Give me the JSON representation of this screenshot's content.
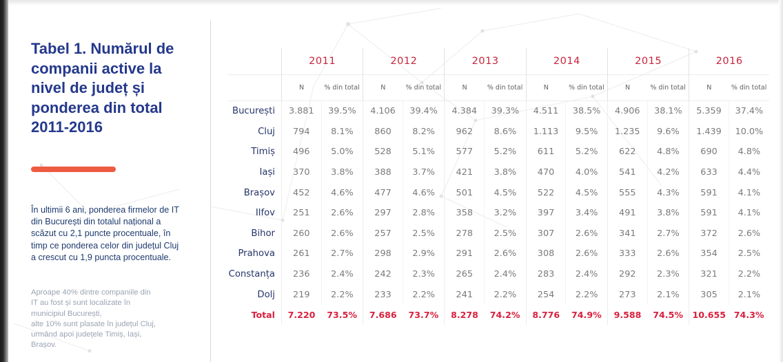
{
  "title": "Tabel 1. Numărul de companii active la nivel de județ și ponderea din total 2011-2016",
  "lead_text": "În ultimii 6 ani, ponderea firmelor de IT din București din totalul național a scăzut cu 2,1 puncte procentuale, în timp ce ponderea celor din județul Cluj a crescut cu 1,9 puncta procentuale.",
  "note_lines": [
    "Aproape 40% dintre companiile din",
    "IT au fost și sunt localizate în",
    "municipiul București,",
    "alte 10% sunt plasate în județul Cluj,",
    "urmând apoi județele Timiș, Iași,",
    "Brașov."
  ],
  "colors": {
    "title": "#24388c",
    "accent": "#ee5b41",
    "year": "#c7243a",
    "total": "#d9213f"
  },
  "table": {
    "years": [
      "2011",
      "2012",
      "2013",
      "2014",
      "2015",
      "2016"
    ],
    "sub_headers": [
      "N",
      "% din total"
    ],
    "rows": [
      {
        "region": "București",
        "values": [
          "3.881",
          "39.5%",
          "4.106",
          "39.4%",
          "4.384",
          "39.3%",
          "4.511",
          "38.5%",
          "4.906",
          "38.1%",
          "5.359",
          "37.4%"
        ]
      },
      {
        "region": "Cluj",
        "values": [
          "794",
          "8.1%",
          "860",
          "8.2%",
          "962",
          "8.6%",
          "1.113",
          "9.5%",
          "1.235",
          "9.6%",
          "1.439",
          "10.0%"
        ]
      },
      {
        "region": "Timiș",
        "values": [
          "496",
          "5.0%",
          "528",
          "5.1%",
          "577",
          "5.2%",
          "611",
          "5.2%",
          "622",
          "4.8%",
          "690",
          "4.8%"
        ]
      },
      {
        "region": "Iași",
        "values": [
          "370",
          "3.8%",
          "388",
          "3.7%",
          "421",
          "3.8%",
          "470",
          "4.0%",
          "541",
          "4.2%",
          "633",
          "4.4%"
        ]
      },
      {
        "region": "Brașov",
        "values": [
          "452",
          "4.6%",
          "477",
          "4.6%",
          "501",
          "4.5%",
          "522",
          "4.5%",
          "555",
          "4.3%",
          "591",
          "4.1%"
        ]
      },
      {
        "region": "Ilfov",
        "values": [
          "251",
          "2.6%",
          "297",
          "2.8%",
          "358",
          "3.2%",
          "397",
          "3.4%",
          "491",
          "3.8%",
          "591",
          "4.1%"
        ]
      },
      {
        "region": "Bihor",
        "values": [
          "260",
          "2.6%",
          "257",
          "2.5%",
          "278",
          "2.5%",
          "307",
          "2.6%",
          "341",
          "2.7%",
          "372",
          "2.6%"
        ]
      },
      {
        "region": "Prahova",
        "values": [
          "261",
          "2.7%",
          "298",
          "2.9%",
          "291",
          "2.6%",
          "308",
          "2.6%",
          "333",
          "2.6%",
          "354",
          "2.5%"
        ]
      },
      {
        "region": "Constanța",
        "values": [
          "236",
          "2.4%",
          "242",
          "2.3%",
          "265",
          "2.4%",
          "283",
          "2.4%",
          "292",
          "2.3%",
          "321",
          "2.2%"
        ]
      },
      {
        "region": "Dolj",
        "values": [
          "219",
          "2.2%",
          "233",
          "2.2%",
          "241",
          "2.2%",
          "254",
          "2.2%",
          "273",
          "2.1%",
          "305",
          "2.1%"
        ]
      }
    ],
    "total": {
      "label": "Total",
      "values": [
        "7.220",
        "73.5%",
        "7.686",
        "73.7%",
        "8.278",
        "74.2%",
        "8.776",
        "74.9%",
        "9.588",
        "74.5%",
        "10.655",
        "74.3%"
      ]
    }
  }
}
